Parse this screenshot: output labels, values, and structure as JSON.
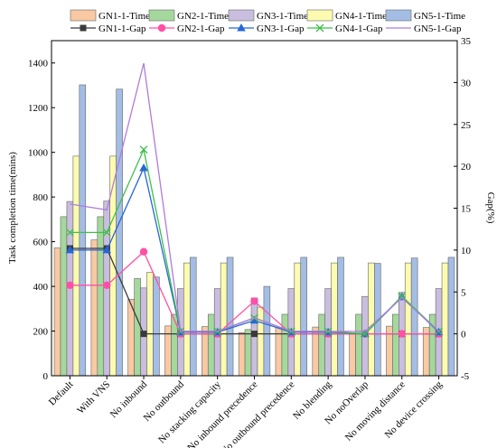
{
  "chart_data": {
    "type": "bar+line",
    "categories": [
      "Default",
      "With VNS",
      "No inbound",
      "No outbound",
      "No stacking capacity",
      "No inbound precedence",
      "No outbound precedence",
      "No blending",
      "No noOverlap",
      "No moving distance",
      "No device crossing"
    ],
    "ylabel": "Task completion time(mins)",
    "y2label": "Gap(%)",
    "ylim": [
      0,
      1500
    ],
    "y2lim": [
      -5,
      35
    ],
    "yticks": [
      0,
      200,
      400,
      600,
      800,
      1000,
      1200,
      1400
    ],
    "y2ticks": [
      -5,
      0,
      5,
      10,
      15,
      20,
      25,
      30,
      35
    ],
    "yticklabels": [
      "0",
      "200",
      "400",
      "600",
      "800",
      "1000",
      "1200",
      "1400"
    ],
    "y2ticklabels": [
      "-5",
      "0",
      "5",
      "10",
      "15",
      "20",
      "25",
      "30",
      "35"
    ],
    "bar_series": [
      {
        "name": "GN1-1-Time",
        "color": "#f8c9a3",
        "values": [
          572,
          608,
          342,
          223,
          220,
          193,
          216,
          218,
          192,
          222,
          216
        ]
      },
      {
        "name": "GN2-1-Time",
        "color": "#a5d89c",
        "values": [
          712,
          712,
          435,
          275,
          275,
          207,
          275,
          275,
          275,
          275,
          275
        ]
      },
      {
        "name": "GN3-1-Time",
        "color": "#c9bedf",
        "values": [
          780,
          782,
          393,
          390,
          390,
          348,
          390,
          390,
          355,
          373,
          390
        ]
      },
      {
        "name": "GN4-1-Time",
        "color": "#fdfbb0",
        "values": [
          983,
          983,
          463,
          505,
          505,
          307,
          505,
          505,
          505,
          505,
          505
        ]
      },
      {
        "name": "GN5-1-Time",
        "color": "#a4bde5",
        "values": [
          1302,
          1283,
          442,
          530,
          530,
          400,
          530,
          530,
          503,
          527,
          530
        ]
      }
    ],
    "line_series": [
      {
        "name": "GN1-1-Gap",
        "color": "#3a3a3a",
        "marker": "square",
        "values": [
          10.2,
          10.2,
          0.0,
          0.0,
          0.0,
          0.0,
          0.0,
          0.0,
          0.0,
          0.0,
          0.0
        ]
      },
      {
        "name": "GN2-1-Gap",
        "color": "#ff4fa7",
        "marker": "circle",
        "values": [
          5.8,
          5.8,
          9.8,
          0.0,
          0.0,
          3.9,
          0.0,
          0.0,
          0.0,
          0.0,
          0.0
        ]
      },
      {
        "name": "GN3-1-Gap",
        "color": "#2767d6",
        "marker": "triangle",
        "values": [
          10.0,
          10.0,
          19.8,
          0.2,
          0.2,
          1.6,
          0.2,
          0.2,
          0.0,
          4.4,
          0.2
        ]
      },
      {
        "name": "GN4-1-Gap",
        "color": "#3fbf4c",
        "marker": "x",
        "values": [
          12.1,
          12.1,
          22.0,
          0.3,
          0.3,
          1.9,
          0.3,
          0.3,
          0.0,
          4.5,
          0.3
        ]
      },
      {
        "name": "GN5-1-Gap",
        "color": "#b07bdc",
        "marker": "none",
        "values": [
          15.5,
          14.8,
          32.3,
          0.3,
          0.3,
          1.9,
          0.3,
          0.3,
          0.3,
          4.3,
          0.3
        ]
      }
    ],
    "legend": "top"
  }
}
